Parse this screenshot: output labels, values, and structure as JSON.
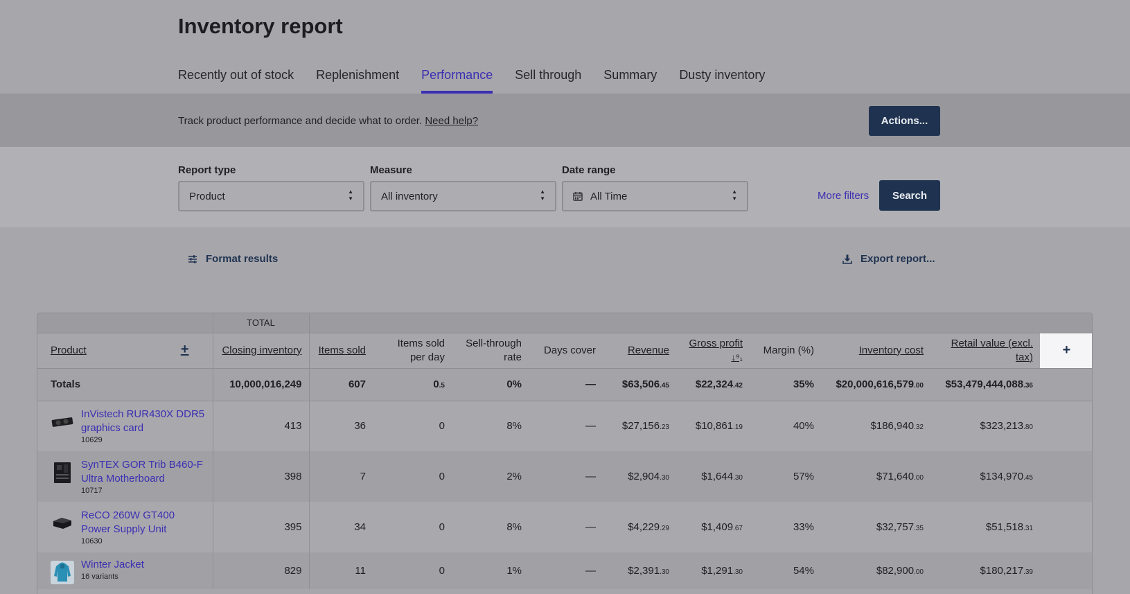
{
  "page": {
    "title": "Inventory report"
  },
  "tabs": [
    {
      "label": "Recently out of stock"
    },
    {
      "label": "Replenishment"
    },
    {
      "label": "Performance"
    },
    {
      "label": "Sell through"
    },
    {
      "label": "Summary"
    },
    {
      "label": "Dusty inventory"
    }
  ],
  "active_tab": "Performance",
  "help": {
    "text": "Track product performance and decide what to order. ",
    "link": "Need help?"
  },
  "actions_button": "Actions...",
  "filters": {
    "report_type": {
      "label": "Report type",
      "value": "Product"
    },
    "measure": {
      "label": "Measure",
      "value": "All inventory"
    },
    "date_range": {
      "label": "Date range",
      "value": "All Time"
    },
    "more_filters": "More filters",
    "search": "Search"
  },
  "toolbar": {
    "format_results": "Format results",
    "export_report": "Export report..."
  },
  "table": {
    "group_header": "TOTAL",
    "columns": {
      "product": "Product",
      "closing_inventory": "Closing inventory",
      "items_sold": "Items sold",
      "items_sold_per_day": "Items sold per day",
      "sell_through_rate": "Sell-through rate",
      "days_cover": "Days cover",
      "revenue": "Revenue",
      "gross_profit": "Gross profit",
      "margin": "Margin (%)",
      "inventory_cost": "Inventory cost",
      "retail_value": "Retail value (excl. tax)"
    },
    "totals": {
      "label": "Totals",
      "closing_inventory": "10,000,016,249",
      "items_sold": "607",
      "items_sold_per_day": "0",
      "items_sold_per_day_dec": ".5",
      "sell_through_rate": "0%",
      "days_cover": "—",
      "revenue": "$63,506",
      "revenue_dec": ".45",
      "gross_profit": "$22,324",
      "gross_profit_dec": ".42",
      "margin": "35%",
      "inventory_cost": "$20,000,616,579",
      "inventory_cost_dec": ".00",
      "retail_value": "$53,479,444,088",
      "retail_value_dec": ".36"
    },
    "rows": [
      {
        "name": "InVistech RUR430X DDR5 graphics card",
        "sub": "10629",
        "thumb": "graphics-card-icon",
        "closing_inventory": "413",
        "items_sold": "36",
        "items_sold_per_day": "0",
        "sell_through_rate": "8%",
        "days_cover": "—",
        "revenue": "$27,156",
        "revenue_dec": ".23",
        "gross_profit": "$10,861",
        "gross_profit_dec": ".19",
        "margin": "40%",
        "inventory_cost": "$186,940",
        "inventory_cost_dec": ".32",
        "retail_value": "$323,213",
        "retail_value_dec": ".80"
      },
      {
        "name": "SynTEX GOR Trib B460-F Ultra Motherboard",
        "sub": "10717",
        "thumb": "motherboard-icon",
        "closing_inventory": "398",
        "items_sold": "7",
        "items_sold_per_day": "0",
        "sell_through_rate": "2%",
        "days_cover": "—",
        "revenue": "$2,904",
        "revenue_dec": ".30",
        "gross_profit": "$1,644",
        "gross_profit_dec": ".30",
        "margin": "57%",
        "inventory_cost": "$71,640",
        "inventory_cost_dec": ".00",
        "retail_value": "$134,970",
        "retail_value_dec": ".45"
      },
      {
        "name": "ReCO 260W GT400 Power Supply Unit",
        "sub": "10630",
        "thumb": "power-supply-icon",
        "closing_inventory": "395",
        "items_sold": "34",
        "items_sold_per_day": "0",
        "sell_through_rate": "8%",
        "days_cover": "—",
        "revenue": "$4,229",
        "revenue_dec": ".29",
        "gross_profit": "$1,409",
        "gross_profit_dec": ".67",
        "margin": "33%",
        "inventory_cost": "$32,757",
        "inventory_cost_dec": ".35",
        "retail_value": "$51,518",
        "retail_value_dec": ".31"
      },
      {
        "name": "Winter Jacket",
        "sub": "16 variants",
        "thumb": "jacket-icon",
        "closing_inventory": "829",
        "items_sold": "11",
        "items_sold_per_day": "0",
        "sell_through_rate": "1%",
        "days_cover": "—",
        "revenue": "$2,391",
        "revenue_dec": ".30",
        "gross_profit": "$1,291",
        "gross_profit_dec": ".30",
        "margin": "54%",
        "inventory_cost": "$82,900",
        "inventory_cost_dec": ".00",
        "retail_value": "$180,217",
        "retail_value_dec": ".39"
      }
    ]
  }
}
